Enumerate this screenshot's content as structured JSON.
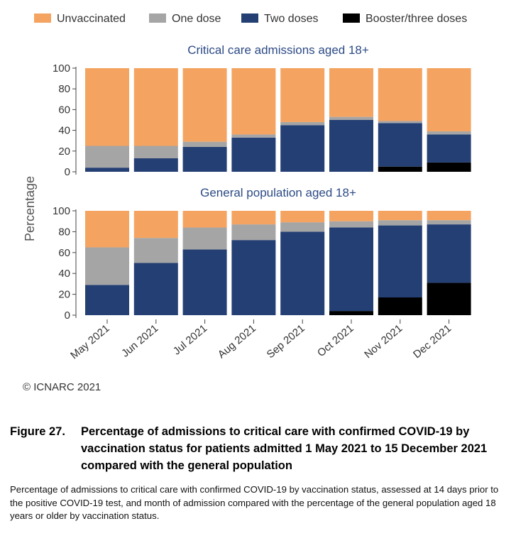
{
  "chart_data": [
    {
      "type": "bar",
      "stacked": true,
      "title": "Critical care admissions aged 18+",
      "categories": [
        "May 2021",
        "Jun 2021",
        "Jul 2021",
        "Aug 2021",
        "Sep 2021",
        "Oct 2021",
        "Nov 2021",
        "Dec 2021"
      ],
      "series": [
        {
          "name": "Booster/three doses",
          "color": "#000000",
          "values": [
            0,
            0,
            0,
            0,
            0,
            0,
            5,
            9
          ]
        },
        {
          "name": "Two doses",
          "color": "#243f73",
          "values": [
            4,
            13,
            24,
            33,
            45,
            50,
            42,
            27
          ]
        },
        {
          "name": "One dose",
          "color": "#a5a5a5",
          "values": [
            21,
            12,
            5,
            3,
            3,
            3,
            2,
            3
          ]
        },
        {
          "name": "Unvaccinated",
          "color": "#f4a460",
          "values": [
            75,
            75,
            71,
            64,
            52,
            47,
            51,
            61
          ]
        }
      ],
      "ylabel": "Percentage",
      "ylim": [
        0,
        100
      ],
      "yticks": [
        0,
        20,
        40,
        60,
        80,
        100
      ]
    },
    {
      "type": "bar",
      "stacked": true,
      "title": "General population aged 18+",
      "categories": [
        "May 2021",
        "Jun 2021",
        "Jul 2021",
        "Aug 2021",
        "Sep 2021",
        "Oct 2021",
        "Nov 2021",
        "Dec 2021"
      ],
      "series": [
        {
          "name": "Booster/three doses",
          "color": "#000000",
          "values": [
            0,
            0,
            0,
            0,
            0,
            4,
            17,
            31
          ]
        },
        {
          "name": "Two doses",
          "color": "#243f73",
          "values": [
            29,
            50,
            63,
            72,
            80,
            80,
            69,
            56
          ]
        },
        {
          "name": "One dose",
          "color": "#a5a5a5",
          "values": [
            36,
            24,
            21,
            15,
            9,
            6,
            5,
            4
          ]
        },
        {
          "name": "Unvaccinated",
          "color": "#f4a460",
          "values": [
            35,
            26,
            16,
            13,
            11,
            10,
            9,
            9
          ]
        }
      ],
      "ylabel": "Percentage",
      "ylim": [
        0,
        100
      ],
      "yticks": [
        0,
        20,
        40,
        60,
        80,
        100
      ]
    }
  ],
  "legend": {
    "placement": "top",
    "items": [
      {
        "name": "Unvaccinated",
        "color": "#f4a460"
      },
      {
        "name": "One dose",
        "color": "#a5a5a5"
      },
      {
        "name": "Two doses",
        "color": "#243f73"
      },
      {
        "name": "Booster/three doses",
        "color": "#000000"
      }
    ]
  },
  "copyright": "© ICNARC 2021",
  "figure": {
    "number": "Figure 27.",
    "title": "Percentage of admissions to critical care with confirmed COVID-19 by vaccination status for patients admitted 1 May 2021 to 15 December 2021 compared with the general population",
    "description": "Percentage of admissions to critical care with confirmed COVID-19 by vaccination status, assessed at 14 days prior to the positive COVID-19 test, and month of admission compared with the percentage of the general population aged 18 years or older by vaccination status."
  }
}
